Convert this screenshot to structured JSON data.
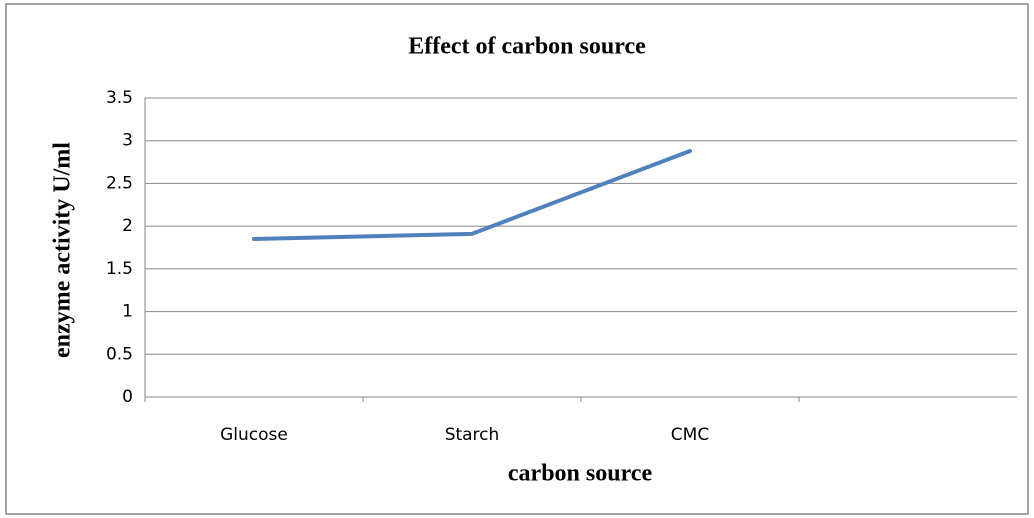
{
  "chart_data": {
    "type": "line",
    "title": "Effect of carbon source",
    "x_label": "carbon source",
    "y_label": "enzyme activity U/ml",
    "categories": [
      "Glucose",
      "Starch",
      "CMC",
      null
    ],
    "values": [
      1.85,
      1.91,
      2.88,
      null
    ],
    "color": "#4f81bd",
    "ylim": [
      0,
      3.5
    ],
    "yticks": [
      0,
      0.5,
      1,
      1.5,
      2,
      2.5,
      3,
      3.5
    ],
    "grid": true
  }
}
